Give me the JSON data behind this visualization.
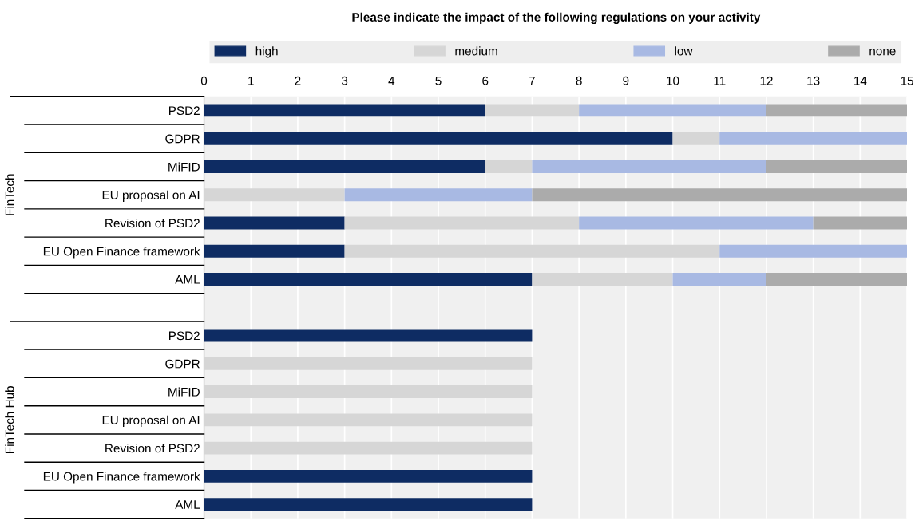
{
  "chart_data": {
    "type": "bar",
    "orientation": "horizontal",
    "stacked": true,
    "title": "Please indicate the impact of the following regulations on your activity",
    "categories": [
      "PSD2",
      "GDPR",
      "MiFID",
      "EU proposal on AI",
      "Revision of PSD2",
      "EU Open Finance framework",
      "AML",
      null,
      "PSD2",
      "GDPR",
      "MiFID",
      "EU proposal on AI",
      "Revision of PSD2",
      "EU Open Finance framework",
      "AML"
    ],
    "series": [
      {
        "name": "high",
        "color": "#0e2c63",
        "values": [
          6,
          10,
          6,
          0,
          3,
          3,
          7,
          null,
          7,
          0,
          0,
          0,
          0,
          7,
          7
        ]
      },
      {
        "name": "medium",
        "color": "#d6d6d6",
        "values": [
          2,
          1,
          1,
          3,
          5,
          8,
          3,
          null,
          0,
          7,
          7,
          7,
          7,
          0,
          0
        ]
      },
      {
        "name": "low",
        "color": "#a8b9e3",
        "values": [
          4,
          4,
          5,
          4,
          5,
          4,
          2,
          null,
          0,
          0,
          0,
          0,
          0,
          0,
          0
        ]
      },
      {
        "name": "none",
        "color": "#ababab",
        "values": [
          3,
          0,
          3,
          8,
          2,
          0,
          3,
          null,
          0,
          0,
          0,
          0,
          0,
          0,
          0
        ]
      }
    ],
    "annotations": [
      "FinTech",
      "FinTech Hub"
    ],
    "xlim": [
      0,
      15
    ],
    "xticks": [
      0,
      1,
      2,
      3,
      4,
      5,
      6,
      7,
      8,
      9,
      10,
      11,
      12,
      13,
      14,
      15
    ],
    "grid": "x",
    "legend": "top"
  }
}
